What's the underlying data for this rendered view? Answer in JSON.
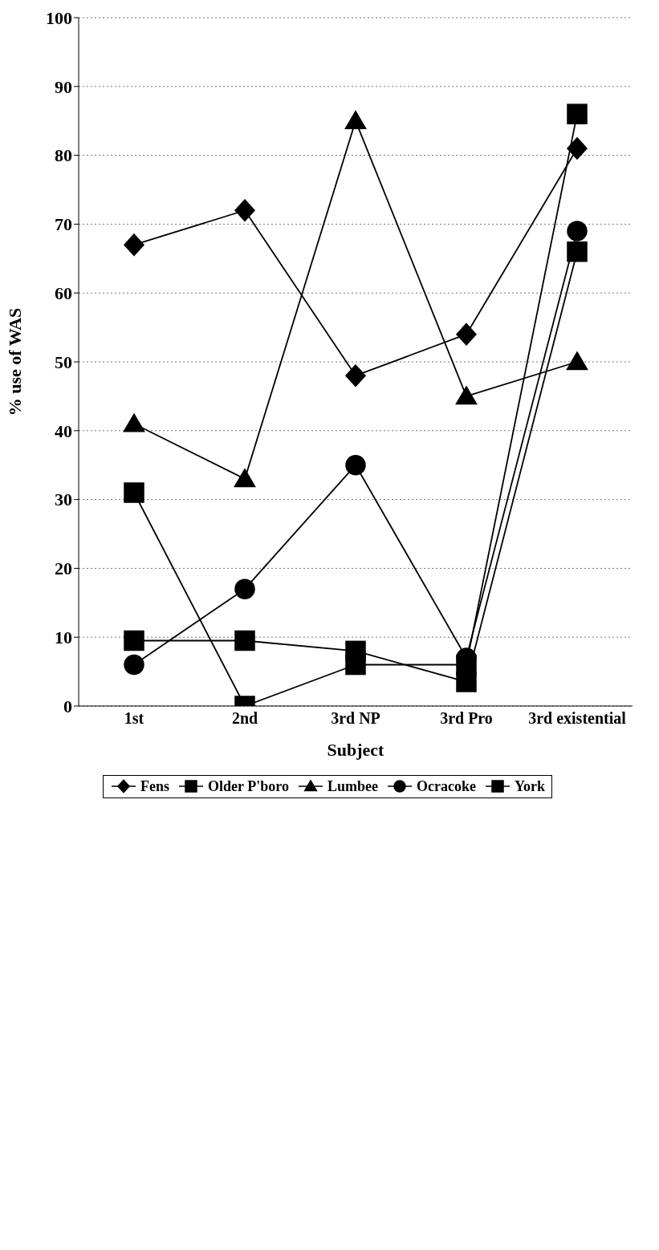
{
  "chart_data": {
    "type": "line",
    "xlabel": "Subject",
    "ylabel": "% use of WAS",
    "categories": [
      "1st",
      "2nd",
      "3rd NP",
      "3rd Pro",
      "3rd existential"
    ],
    "series": [
      {
        "name": "Fens",
        "color": "#000000",
        "marker": "diamond",
        "values": [
          67,
          72,
          48,
          54,
          81
        ]
      },
      {
        "name": "Older P'boro",
        "color": "#000000",
        "marker": "square",
        "values": [
          31,
          0,
          6,
          6,
          86
        ]
      },
      {
        "name": "Lumbee",
        "color": "#000000",
        "marker": "triangle",
        "values": [
          41,
          33,
          85,
          45,
          50
        ]
      },
      {
        "name": "Ocracoke",
        "color": "#000000",
        "marker": "circle",
        "values": [
          6,
          17,
          35,
          7,
          69
        ]
      },
      {
        "name": "York",
        "color": "#000000",
        "marker": "square",
        "values": [
          9.5,
          9.5,
          8,
          3.5,
          66
        ]
      }
    ],
    "ylim": [
      0,
      100
    ],
    "yticks": [
      0,
      10,
      20,
      30,
      40,
      50,
      60,
      70,
      80,
      90,
      100
    ],
    "grid": "y",
    "legend": "bottom",
    "line_style": "solid"
  }
}
